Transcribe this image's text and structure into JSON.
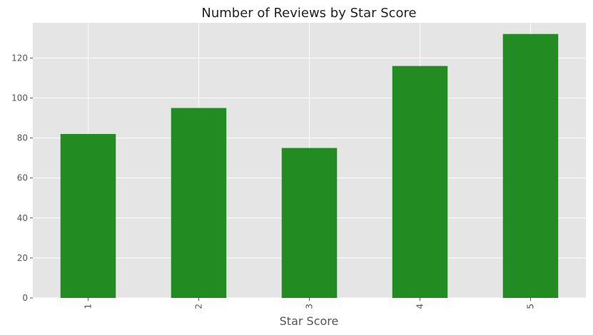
{
  "chart_data": {
    "type": "bar",
    "title": "Number of Reviews by Star Score",
    "xlabel": "Star Score",
    "ylabel": "",
    "categories": [
      "1",
      "2",
      "3",
      "4",
      "5"
    ],
    "values": [
      82,
      95,
      75,
      116,
      132
    ],
    "ylim": [
      0,
      137.6
    ],
    "yticks": [
      0,
      20,
      40,
      60,
      80,
      100,
      120
    ],
    "yticklabels": [
      "0",
      "20",
      "40",
      "60",
      "80",
      "100",
      "120"
    ],
    "grid": true,
    "bar_color": "#228b22",
    "background_color": "#e5e5e5"
  }
}
